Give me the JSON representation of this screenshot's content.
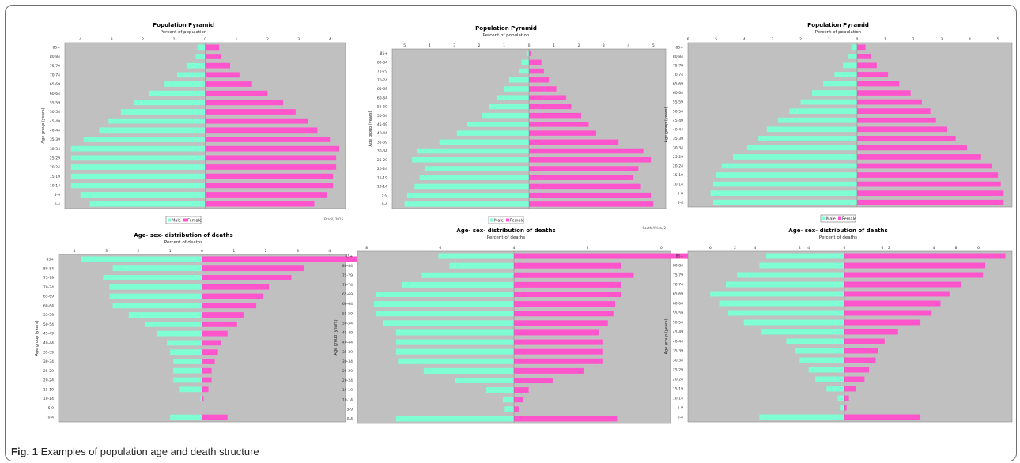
{
  "caption": {
    "label": "Fig. 1",
    "text": "Examples of population age and death structure"
  },
  "age_groups": [
    "0-4",
    "5-9",
    "10-14",
    "15-19",
    "20-24",
    "25-29",
    "30-34",
    "35-39",
    "40-44",
    "45-49",
    "50-54",
    "55-59",
    "60-64",
    "65-69",
    "70-74",
    "75-79",
    "80-84",
    "85+"
  ],
  "colors": {
    "male": "#7fffd4",
    "female": "#ff55cc",
    "plot_bg": "#c0c0c0",
    "frame": "#6f6f6f"
  },
  "chart_data": [
    {
      "type": "bar",
      "orientation": "population-pyramid",
      "title": "Population Pyramid",
      "xlabel": "Percent of population",
      "ylabel": "Age group (years)",
      "ticks": [
        "4",
        "3",
        "2",
        "1",
        "0",
        "1",
        "2",
        "3",
        "4"
      ],
      "xlim": [
        -4.5,
        4.5
      ],
      "legend": [
        "Male",
        "Female"
      ],
      "legend_position": "bottom",
      "note": "Brazil, 2015",
      "series": [
        {
          "name": "Male",
          "values": [
            3.7,
            4.0,
            4.3,
            4.3,
            4.3,
            4.3,
            4.3,
            3.9,
            3.4,
            3.1,
            2.7,
            2.3,
            1.8,
            1.3,
            0.9,
            0.6,
            0.3,
            0.25
          ]
        },
        {
          "name": "Female",
          "values": [
            3.5,
            3.9,
            4.1,
            4.1,
            4.2,
            4.2,
            4.3,
            4.0,
            3.6,
            3.3,
            2.9,
            2.5,
            2.0,
            1.5,
            1.1,
            0.8,
            0.5,
            0.45
          ]
        }
      ]
    },
    {
      "type": "bar",
      "orientation": "population-pyramid",
      "title": "Population Pyramid",
      "xlabel": "Percent of population",
      "ylabel": "Age group (years)",
      "ticks": [
        "5",
        "4",
        "3",
        "2",
        "1",
        "0",
        "1",
        "2",
        "3",
        "4",
        "5"
      ],
      "xlim": [
        -5.5,
        5.5
      ],
      "legend": [
        "Male",
        "Female"
      ],
      "legend_position": "bottom",
      "note": "South Africa, 2",
      "series": [
        {
          "name": "Male",
          "values": [
            5.0,
            4.9,
            4.6,
            4.4,
            4.2,
            4.7,
            4.5,
            3.6,
            2.9,
            2.5,
            1.9,
            1.6,
            1.3,
            1.0,
            0.8,
            0.4,
            0.3,
            0.1
          ]
        },
        {
          "name": "Female",
          "values": [
            5.0,
            4.9,
            4.5,
            4.2,
            4.4,
            4.9,
            4.6,
            3.6,
            2.7,
            2.4,
            2.1,
            1.7,
            1.5,
            1.1,
            0.8,
            0.6,
            0.5,
            0.1
          ]
        }
      ]
    },
    {
      "type": "bar",
      "orientation": "population-pyramid",
      "title": "Population Pyramid",
      "xlabel": "Percent of population",
      "ylabel": "Age group (years)",
      "ticks": [
        "6",
        "5",
        "4",
        "3",
        "2",
        "1",
        "0",
        "1",
        "2",
        "3",
        "4",
        "5"
      ],
      "xlim": [
        -6,
        5.5
      ],
      "legend": [
        "Male",
        "Female"
      ],
      "legend_position": "bottom",
      "note": "",
      "series": [
        {
          "name": "Male",
          "values": [
            5.1,
            5.2,
            5.1,
            5.0,
            4.8,
            4.4,
            3.9,
            3.5,
            3.2,
            2.8,
            2.4,
            2.0,
            1.6,
            1.2,
            0.8,
            0.5,
            0.3,
            0.2
          ]
        },
        {
          "name": "Female",
          "values": [
            5.2,
            5.2,
            5.1,
            5.0,
            4.8,
            4.4,
            3.9,
            3.5,
            3.2,
            2.8,
            2.6,
            2.3,
            1.9,
            1.5,
            1.1,
            0.7,
            0.5,
            0.3
          ]
        }
      ]
    },
    {
      "type": "bar",
      "orientation": "population-pyramid",
      "title": "Age- sex- distribution of deaths",
      "xlabel": "Percent of deaths",
      "ylabel": "Age group (years)",
      "ticks": [
        "4",
        "3",
        "2",
        "1",
        "0",
        "1",
        "2",
        "3",
        "4"
      ],
      "xlim": [
        -4.5,
        4.5
      ],
      "series": [
        {
          "name": "Male",
          "values": [
            1.0,
            0.0,
            0.05,
            0.7,
            0.9,
            0.9,
            0.9,
            1.0,
            1.1,
            1.4,
            1.8,
            2.3,
            2.8,
            2.9,
            2.9,
            3.1,
            2.8,
            3.8
          ]
        },
        {
          "name": "Female",
          "values": [
            0.8,
            0.0,
            0.05,
            0.2,
            0.3,
            0.3,
            0.4,
            0.5,
            0.6,
            0.8,
            1.1,
            1.3,
            1.7,
            1.9,
            2.1,
            2.8,
            3.2,
            5.6
          ]
        }
      ]
    },
    {
      "type": "bar",
      "orientation": "population-pyramid",
      "title": "Age- sex- distribution of deaths",
      "xlabel": "Percent of deaths",
      "ylabel": "Age group (years)",
      "ticks": [
        "8",
        "6",
        "4",
        "2",
        "0",
        "2",
        "4",
        "6",
        "8"
      ],
      "xlim": [
        -8.5,
        8.5
      ],
      "series": [
        {
          "name": "Male",
          "values": [
            6.4,
            0.5,
            0.6,
            1.5,
            3.2,
            4.9,
            6.3,
            6.4,
            6.4,
            6.4,
            7.1,
            7.5,
            7.6,
            7.5,
            6.1,
            5.0,
            3.5,
            4.1
          ]
        },
        {
          "name": "Female",
          "values": [
            5.6,
            0.3,
            0.5,
            0.8,
            2.1,
            3.8,
            4.8,
            4.8,
            4.8,
            4.6,
            5.1,
            5.4,
            5.5,
            5.8,
            5.8,
            6.5,
            5.8,
            9.8
          ]
        }
      ]
    },
    {
      "type": "bar",
      "orientation": "population-pyramid",
      "title": "Age- sex- distribution of deaths",
      "xlabel": "Percent of deaths",
      "ylabel": "Age group (years)",
      "ticks": [
        "6",
        "4",
        "2",
        "0",
        "2",
        "4",
        "6"
      ],
      "xlim": [
        -7,
        7.5
      ],
      "series": [
        {
          "name": "Male",
          "values": [
            3.8,
            0.2,
            0.3,
            0.8,
            1.3,
            1.6,
            2.0,
            2.2,
            2.6,
            3.7,
            4.5,
            5.2,
            5.6,
            6.0,
            5.3,
            4.8,
            3.8,
            3.5
          ]
        },
        {
          "name": "Female",
          "values": [
            3.4,
            0.1,
            0.2,
            0.5,
            0.9,
            1.1,
            1.4,
            1.5,
            1.8,
            2.4,
            3.4,
            3.9,
            4.3,
            4.7,
            5.2,
            6.2,
            6.3,
            7.2
          ]
        }
      ]
    }
  ]
}
